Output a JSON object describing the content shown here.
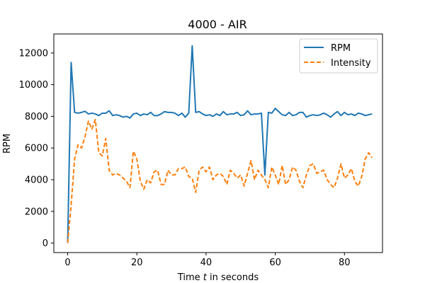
{
  "chart_data": {
    "type": "line",
    "title": "4000 - AIR",
    "xlabel_prefix": "Time ",
    "xlabel_var": "t",
    "xlabel_suffix": " in seconds",
    "ylabel": "RPM",
    "xlim": [
      -4,
      91
    ],
    "ylim": [
      -600,
      13200
    ],
    "xticks": [
      0,
      20,
      40,
      60,
      80
    ],
    "yticks": [
      0,
      2000,
      4000,
      6000,
      8000,
      10000,
      12000
    ],
    "grid": false,
    "legend_position": "top-right",
    "x": [
      0,
      1,
      2,
      3,
      4,
      5,
      6,
      7,
      8,
      9,
      10,
      11,
      12,
      13,
      14,
      15,
      16,
      17,
      18,
      19,
      20,
      21,
      22,
      23,
      24,
      25,
      26,
      27,
      28,
      29,
      30,
      31,
      32,
      33,
      34,
      35,
      36,
      37,
      38,
      39,
      40,
      41,
      42,
      43,
      44,
      45,
      46,
      47,
      48,
      49,
      50,
      51,
      52,
      53,
      54,
      55,
      56,
      57,
      58,
      59,
      60,
      61,
      62,
      63,
      64,
      65,
      66,
      67,
      68,
      69,
      70,
      71,
      72,
      73,
      74,
      75,
      76,
      77,
      78,
      79,
      80,
      81,
      82,
      83,
      84,
      85,
      86,
      87,
      88
    ],
    "series": [
      {
        "name": "RPM",
        "color": "#1f77b4",
        "style": "solid",
        "values": [
          0,
          11400,
          8250,
          8200,
          8250,
          8320,
          8150,
          8200,
          8150,
          8050,
          8200,
          8200,
          8350,
          8050,
          8100,
          8050,
          7950,
          8000,
          7900,
          8150,
          8200,
          8050,
          8150,
          8100,
          8250,
          8050,
          8050,
          8150,
          8300,
          8250,
          8250,
          8200,
          8050,
          8200,
          7950,
          8200,
          12450,
          8250,
          8300,
          8150,
          8050,
          8100,
          8000,
          8150,
          8050,
          8300,
          8100,
          8150,
          8150,
          8250,
          8050,
          8100,
          8350,
          8100,
          8150,
          8150,
          8200,
          4300,
          8250,
          8200,
          8500,
          8300,
          8100,
          8050,
          8250,
          8050,
          8100,
          8250,
          8250,
          7950,
          8050,
          8100,
          8050,
          8100,
          8200,
          8100,
          7950,
          8150,
          8300,
          8050,
          8250,
          8100,
          8150,
          8050,
          8200,
          8150,
          8050,
          8100,
          8150
        ]
      },
      {
        "name": "Intensity",
        "color": "#ff7f0e",
        "style": "dashed",
        "values": [
          0,
          2400,
          5300,
          6200,
          6000,
          6700,
          7700,
          7200,
          7800,
          5700,
          5500,
          6600,
          4600,
          4300,
          4400,
          4300,
          4100,
          3900,
          3500,
          5800,
          5300,
          3900,
          3400,
          4000,
          3800,
          4500,
          4600,
          3700,
          3700,
          4600,
          4300,
          4300,
          4700,
          4700,
          4800,
          4200,
          4100,
          3200,
          4600,
          4800,
          4500,
          4800,
          4000,
          4300,
          4400,
          4200,
          3700,
          4600,
          4400,
          4100,
          4300,
          3600,
          4400,
          5200,
          4000,
          4600,
          4300,
          4000,
          3500,
          4800,
          4300,
          3700,
          4900,
          3700,
          4000,
          4800,
          4600,
          3900,
          3500,
          4300,
          4900,
          5000,
          4400,
          4500,
          4600,
          4000,
          3700,
          3500,
          4100,
          5000,
          4100,
          4300,
          4700,
          3900,
          3600,
          4200,
          5300,
          5700,
          5400
        ]
      }
    ]
  }
}
